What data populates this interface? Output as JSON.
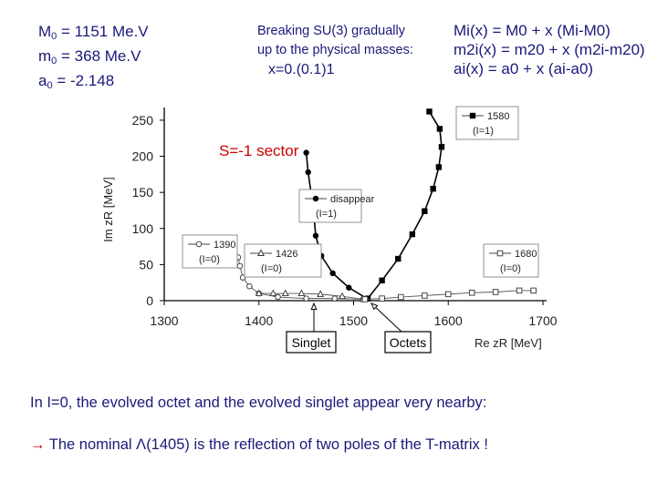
{
  "params": {
    "line1": {
      "sym": "M",
      "sub": "0",
      "rest": " = 1151 Me.V"
    },
    "line2": {
      "sym": "m",
      "sub": "0",
      "rest": " = 368 Me.V"
    },
    "line3": {
      "sym": "a",
      "sub": "0",
      "rest": " = -2.148"
    }
  },
  "note": {
    "line1": "Breaking SU(3) gradually",
    "line2": "up to the physical masses:",
    "line3": "x=0.(0.1)1"
  },
  "formulas": {
    "line1": "Mi(x) = M0 + x (Mi-M0)",
    "line2": "m2i(x) = m20 + x (m2i-m20)",
    "line3": "ai(x) = a0 + x (ai-a0)"
  },
  "sector_label": "S=-1 sector",
  "bottom": {
    "line1": "In I=0, the evolved octet and the evolved singlet appear very nearby:",
    "arrow": "→",
    "line2": " The nominal Λ(1405) is the reflection of two poles of the T-matrix !"
  },
  "chart_data": {
    "type": "scatter",
    "xlabel": "Re zR  [MeV]",
    "ylabel": "Im zR  [MeV]",
    "xlim": [
      1300,
      1700
    ],
    "ylim": [
      0,
      260
    ],
    "xticks": [
      "1300",
      "1400",
      "1500",
      "1600",
      "1700"
    ],
    "yticks": [
      "0",
      "50",
      "100",
      "150",
      "200",
      "250"
    ],
    "series": [
      {
        "name": "1580 (I=1)",
        "marker": "filled-square",
        "points": [
          [
            1515,
            3
          ],
          [
            1530,
            28
          ],
          [
            1547,
            58
          ],
          [
            1562,
            92
          ],
          [
            1575,
            124
          ],
          [
            1584,
            155
          ],
          [
            1590,
            185
          ],
          [
            1593,
            213
          ],
          [
            1591,
            238
          ],
          [
            1580,
            262
          ]
        ]
      },
      {
        "name": "disappear (I=1)",
        "marker": "filled-circle",
        "points": [
          [
            1514,
            3
          ],
          [
            1495,
            18
          ],
          [
            1478,
            38
          ],
          [
            1466,
            62
          ],
          [
            1460,
            90
          ],
          [
            1458,
            120
          ],
          [
            1455,
            150
          ],
          [
            1452,
            178
          ],
          [
            1450,
            205
          ]
        ]
      },
      {
        "name": "1390 (I=0)",
        "marker": "open-circle",
        "points": [
          [
            1510,
            2
          ],
          [
            1480,
            3
          ],
          [
            1450,
            3
          ],
          [
            1420,
            5
          ],
          [
            1400,
            10
          ],
          [
            1390,
            20
          ],
          [
            1383,
            32
          ],
          [
            1380,
            48
          ],
          [
            1378,
            60
          ]
        ]
      },
      {
        "name": "1426 (I=0)",
        "marker": "open-triangle",
        "points": [
          [
            1510,
            2
          ],
          [
            1488,
            6
          ],
          [
            1465,
            9
          ],
          [
            1445,
            10
          ],
          [
            1428,
            10
          ],
          [
            1415,
            10
          ],
          [
            1400,
            10
          ]
        ]
      },
      {
        "name": "1680 (I=0)",
        "marker": "open-square",
        "points": [
          [
            1512,
            2
          ],
          [
            1530,
            3
          ],
          [
            1550,
            5
          ],
          [
            1575,
            7
          ],
          [
            1600,
            9
          ],
          [
            1625,
            11
          ],
          [
            1650,
            12
          ],
          [
            1675,
            14
          ],
          [
            1690,
            14
          ]
        ]
      }
    ],
    "legend": [
      "1580 (I=1)",
      "disappear (I=1)",
      "1390 (I=0)",
      "1426 (I=0)",
      "1680 (I=0)"
    ],
    "annotations": [
      "Singlet",
      "Octets"
    ]
  }
}
